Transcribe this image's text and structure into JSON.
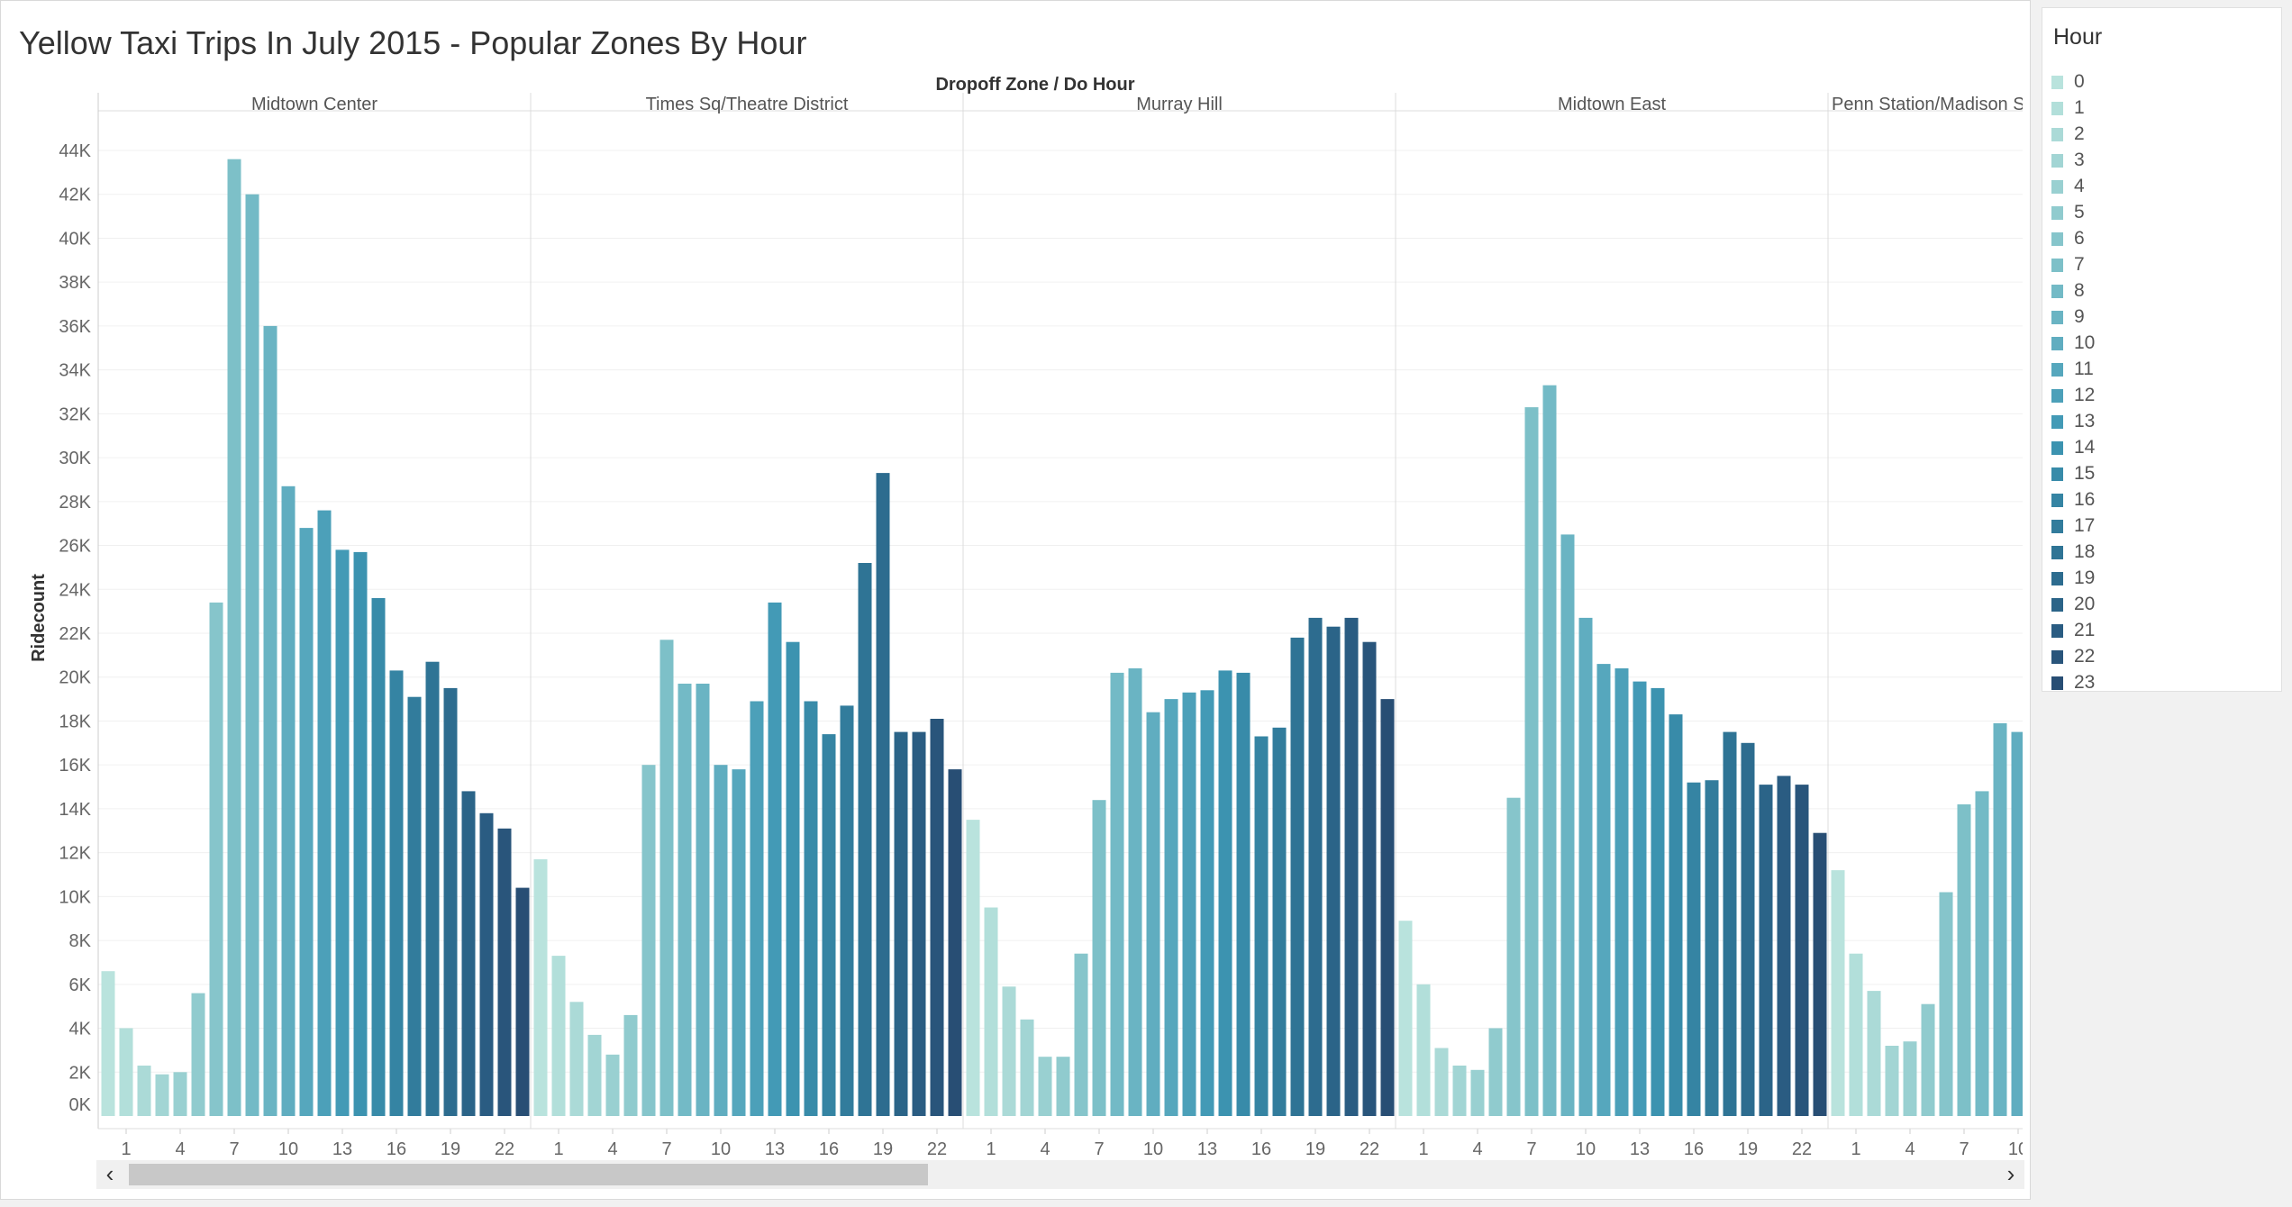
{
  "chart_data": {
    "type": "bar",
    "title": "Yellow Taxi Trips In July 2015 - Popular Zones By Hour",
    "column_header": "Dropoff Zone  /  Do Hour",
    "ylabel": "Ridecount",
    "ylim": [
      0,
      45000
    ],
    "y_ticks": [
      "0K",
      "2K",
      "4K",
      "6K",
      "8K",
      "10K",
      "12K",
      "14K",
      "16K",
      "18K",
      "20K",
      "22K",
      "24K",
      "26K",
      "28K",
      "30K",
      "32K",
      "34K",
      "36K",
      "38K",
      "40K",
      "42K",
      "44K"
    ],
    "x_tick_labels": [
      "1",
      "4",
      "7",
      "10",
      "13",
      "16",
      "19",
      "22"
    ],
    "x_tick_labels_last_panel": [
      "1",
      "4",
      "7",
      "10"
    ],
    "grid": true,
    "legend_position": "right",
    "panels": [
      {
        "zone": "Midtown Center",
        "values": [
          6600,
          4000,
          2300,
          1900,
          2000,
          5600,
          23400,
          43600,
          42000,
          36000,
          28700,
          26800,
          27600,
          25800,
          25700,
          23600,
          20300,
          19100,
          20700,
          19500,
          14800,
          13800,
          13100,
          10400
        ]
      },
      {
        "zone": "Times Sq/Theatre District",
        "values": [
          11700,
          7300,
          5200,
          3700,
          2800,
          4600,
          16000,
          21700,
          19700,
          19700,
          16000,
          15800,
          18900,
          23400,
          21600,
          18900,
          17400,
          18700,
          25200,
          29300,
          17500,
          17500,
          18100,
          15800
        ]
      },
      {
        "zone": "Murray Hill",
        "values": [
          13500,
          9500,
          5900,
          4400,
          2700,
          2700,
          7400,
          14400,
          20200,
          20400,
          18400,
          19000,
          19300,
          19400,
          20300,
          20200,
          17300,
          17700,
          21800,
          22700,
          22300,
          22700,
          21600,
          19000
        ]
      },
      {
        "zone": "Midtown East",
        "values": [
          8900,
          6000,
          3100,
          2300,
          2100,
          4000,
          14500,
          32300,
          33300,
          26500,
          22700,
          20600,
          20400,
          19800,
          19500,
          18300,
          15200,
          15300,
          17500,
          17000,
          15100,
          15500,
          15100,
          12900
        ]
      },
      {
        "zone": "Penn Station/Madison Sq West",
        "values": [
          11200,
          7400,
          5700,
          3200,
          3400,
          5100,
          10200,
          14200,
          14800,
          17900,
          17500
        ]
      }
    ]
  },
  "legend": {
    "title": "Hour",
    "items": [
      {
        "label": "0",
        "color": "#b9e3dd"
      },
      {
        "label": "1",
        "color": "#b2dfda"
      },
      {
        "label": "2",
        "color": "#abdad7"
      },
      {
        "label": "3",
        "color": "#a2d5d4"
      },
      {
        "label": "4",
        "color": "#99d0d1"
      },
      {
        "label": "5",
        "color": "#90cbce"
      },
      {
        "label": "6",
        "color": "#86c5cb"
      },
      {
        "label": "7",
        "color": "#7dc0c8"
      },
      {
        "label": "8",
        "color": "#73bac6"
      },
      {
        "label": "9",
        "color": "#6ab4c3"
      },
      {
        "label": "10",
        "color": "#60adc0"
      },
      {
        "label": "11",
        "color": "#56a7bd"
      },
      {
        "label": "12",
        "color": "#4ca0b9"
      },
      {
        "label": "13",
        "color": "#439ab6"
      },
      {
        "label": "14",
        "color": "#3c93b0"
      },
      {
        "label": "15",
        "color": "#388ba9"
      },
      {
        "label": "16",
        "color": "#3584a3"
      },
      {
        "label": "17",
        "color": "#327c9c"
      },
      {
        "label": "18",
        "color": "#2f7495"
      },
      {
        "label": "19",
        "color": "#2d6c8f"
      },
      {
        "label": "20",
        "color": "#2b6488"
      },
      {
        "label": "21",
        "color": "#2a5c82"
      },
      {
        "label": "22",
        "color": "#29557b"
      },
      {
        "label": "23",
        "color": "#284e74"
      }
    ]
  },
  "scrollbar": {
    "left_arrow": "‹",
    "right_arrow": "›"
  }
}
